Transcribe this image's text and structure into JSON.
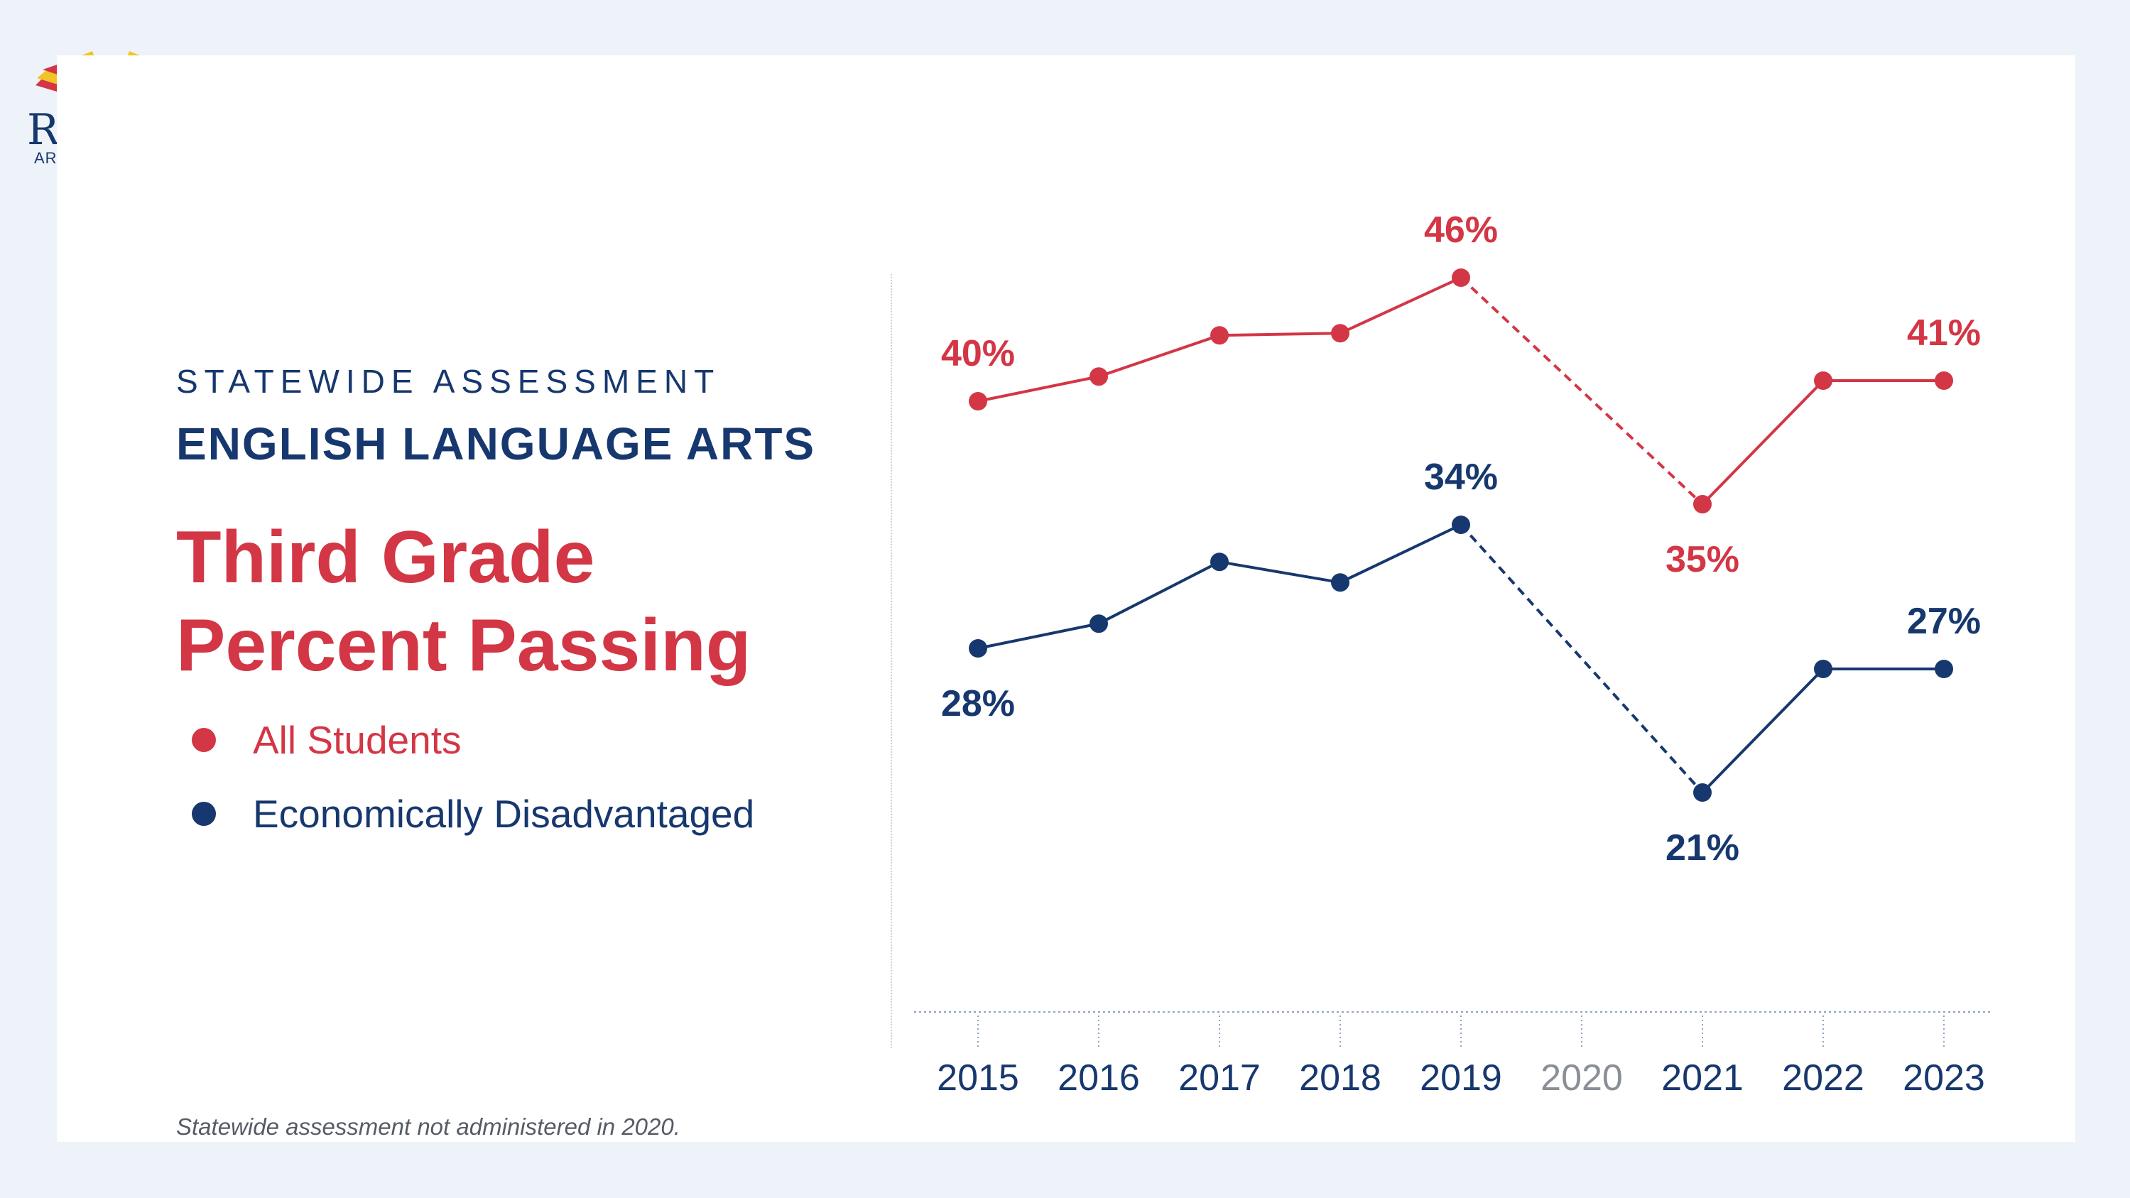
{
  "logo": {
    "word": "ReaD On",
    "sub": "ARIZONA"
  },
  "eyebrow": "STATEWIDE ASSESSMENT",
  "subject": "ENGLISH LANGUAGE ARTS",
  "heading_line1": "Third Grade",
  "heading_line2": "Percent Passing",
  "footnote": "Statewide assessment not administered in 2020.",
  "colors": {
    "all": "#d33645",
    "econ": "#17386e",
    "muted": "#8a8f97",
    "background": "#eef3fa"
  },
  "chart_data": {
    "type": "line",
    "categories": [
      "2015",
      "2016",
      "2017",
      "2018",
      "2019",
      "2020",
      "2021",
      "2022",
      "2023"
    ],
    "ylim": [
      15,
      50
    ],
    "grid": false,
    "legend_position": "left",
    "series": [
      {
        "name": "All Students",
        "color": "#d33645",
        "values": [
          40,
          41.2,
          43.2,
          43.3,
          46,
          null,
          35,
          41,
          41
        ],
        "labels": [
          "40%",
          null,
          null,
          null,
          "46%",
          null,
          "35%",
          null,
          "41%"
        ]
      },
      {
        "name": "Economically Disadvantaged",
        "color": "#17386e",
        "values": [
          28,
          29.2,
          32.2,
          31.2,
          34,
          null,
          21,
          27,
          27
        ],
        "labels": [
          "28%",
          null,
          null,
          null,
          "34%",
          null,
          "21%",
          null,
          "27%"
        ]
      }
    ],
    "annotations": [
      "Statewide assessment not administered in 2020."
    ]
  }
}
